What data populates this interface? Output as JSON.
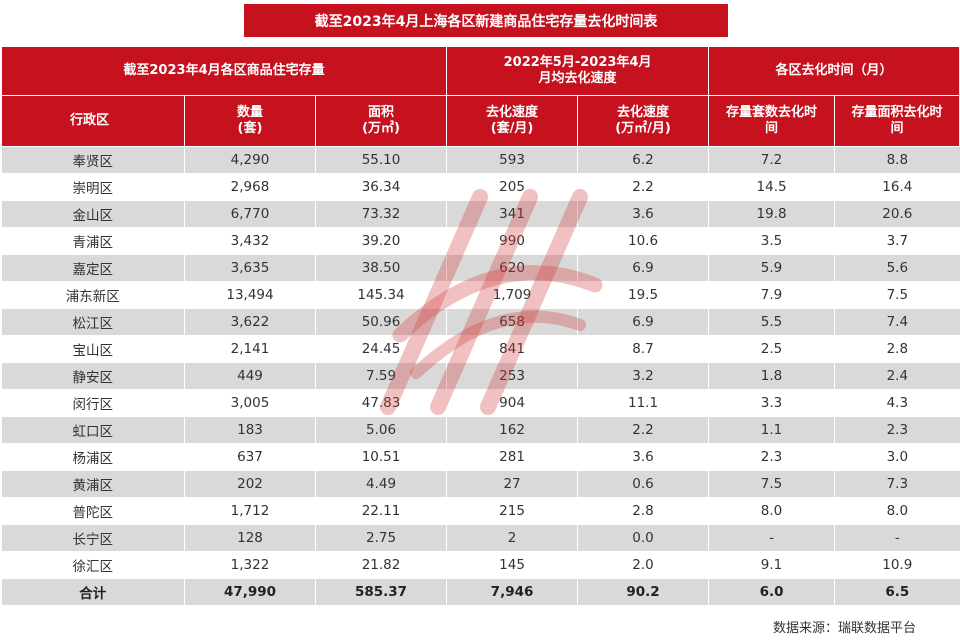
{
  "title": "截至2023年4月上海各区新建商品住宅存量去化时间表",
  "groups": {
    "stock": "截至2023年4月各区商品住宅存量",
    "speed_line1": "2022年5月-2023年4月",
    "speed_line2": "月均去化速度",
    "time": "各区去化时间（月）"
  },
  "columns": {
    "district": "行政区",
    "count_l1": "数量",
    "count_l2": "(套)",
    "area_l1": "面积",
    "area_l2": "(万㎡)",
    "sp_units_l1": "去化速度",
    "sp_units_l2": "(套/月)",
    "sp_area_l1": "去化速度",
    "sp_area_l2": "(万㎡/月)",
    "t_units_l1": "存量套数去化时",
    "t_units_l2": "间",
    "t_area_l1": "存量面积去化时",
    "t_area_l2": "间"
  },
  "rows": [
    [
      "奉贤区",
      "4,290",
      "55.10",
      "593",
      "6.2",
      "7.2",
      "8.8"
    ],
    [
      "崇明区",
      "2,968",
      "36.34",
      "205",
      "2.2",
      "14.5",
      "16.4"
    ],
    [
      "金山区",
      "6,770",
      "73.32",
      "341",
      "3.6",
      "19.8",
      "20.6"
    ],
    [
      "青浦区",
      "3,432",
      "39.20",
      "990",
      "10.6",
      "3.5",
      "3.7"
    ],
    [
      "嘉定区",
      "3,635",
      "38.50",
      "620",
      "6.9",
      "5.9",
      "5.6"
    ],
    [
      "浦东新区",
      "13,494",
      "145.34",
      "1,709",
      "19.5",
      "7.9",
      "7.5"
    ],
    [
      "松江区",
      "3,622",
      "50.96",
      "658",
      "6.9",
      "5.5",
      "7.4"
    ],
    [
      "宝山区",
      "2,141",
      "24.45",
      "841",
      "8.7",
      "2.5",
      "2.8"
    ],
    [
      "静安区",
      "449",
      "7.59",
      "253",
      "3.2",
      "1.8",
      "2.4"
    ],
    [
      "闵行区",
      "3,005",
      "47.83",
      "904",
      "11.1",
      "3.3",
      "4.3"
    ],
    [
      "虹口区",
      "183",
      "5.06",
      "162",
      "2.2",
      "1.1",
      "2.3"
    ],
    [
      "杨浦区",
      "637",
      "10.51",
      "281",
      "3.6",
      "2.3",
      "3.0"
    ],
    [
      "黄浦区",
      "202",
      "4.49",
      "27",
      "0.6",
      "7.5",
      "7.3"
    ],
    [
      "普陀区",
      "1,712",
      "22.11",
      "215",
      "2.8",
      "8.0",
      "8.0"
    ],
    [
      "长宁区",
      "128",
      "2.75",
      "2",
      "0.0",
      "-",
      "-"
    ],
    [
      "徐汇区",
      "1,322",
      "21.82",
      "145",
      "2.0",
      "9.1",
      "10.9"
    ]
  ],
  "total": [
    "合计",
    "47,990",
    "585.37",
    "7,946",
    "90.2",
    "6.0",
    "6.5"
  ],
  "source": "数据来源：瑞联数据平台",
  "colors": {
    "header_bg": "#c5121e",
    "stripe": "#d9d9d9",
    "watermark": "#d23a3a"
  },
  "watermark_icon": "ruilian-logo-watermark"
}
